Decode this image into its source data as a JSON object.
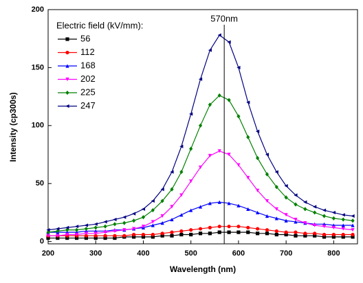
{
  "chart_data": {
    "type": "line",
    "xlabel": "Wavelength (nm)",
    "ylabel": "Intensity (cp300s)",
    "legend_title": "Electric field (kV/mm):",
    "legend": "upper left",
    "annotation": {
      "text": "570nm",
      "x": 570
    },
    "xlim": [
      200,
      850
    ],
    "ylim": [
      -2,
      200
    ],
    "xticks": [
      200,
      300,
      400,
      500,
      600,
      700,
      800
    ],
    "yticks": [
      0,
      50,
      100,
      150,
      200
    ],
    "x": [
      200,
      220,
      240,
      260,
      280,
      300,
      320,
      340,
      360,
      380,
      400,
      420,
      440,
      460,
      480,
      500,
      520,
      540,
      560,
      580,
      600,
      620,
      640,
      660,
      680,
      700,
      720,
      740,
      760,
      780,
      800,
      820,
      840
    ],
    "series": [
      {
        "name": "56",
        "color": "#000000",
        "marker": "square",
        "values": [
          3,
          3,
          3,
          3,
          3,
          3,
          3,
          3,
          4,
          4,
          4,
          4,
          5,
          5,
          6,
          6,
          7,
          7,
          8,
          8,
          8,
          8,
          7,
          7,
          6,
          6,
          5,
          5,
          5,
          4,
          4,
          4,
          4
        ]
      },
      {
        "name": "112",
        "color": "#ff0000",
        "marker": "circle",
        "values": [
          5,
          5,
          5,
          5,
          5,
          5,
          5,
          5,
          5,
          6,
          6,
          6,
          7,
          8,
          9,
          10,
          11,
          12,
          13,
          13,
          13,
          12,
          11,
          10,
          9,
          8,
          8,
          7,
          7,
          6,
          6,
          6,
          6
        ]
      },
      {
        "name": "168",
        "color": "#0000ff",
        "marker": "triangle-up",
        "values": [
          8,
          8,
          8,
          8,
          9,
          9,
          9,
          10,
          10,
          11,
          12,
          14,
          16,
          19,
          23,
          27,
          30,
          33,
          34,
          33,
          31,
          28,
          25,
          22,
          20,
          18,
          17,
          16,
          15,
          15,
          14,
          14,
          14
        ]
      },
      {
        "name": "202",
        "color": "#ff00ff",
        "marker": "triangle-down",
        "values": [
          5,
          5,
          6,
          6,
          7,
          7,
          8,
          9,
          10,
          11,
          13,
          17,
          22,
          30,
          40,
          52,
          64,
          74,
          78,
          75,
          66,
          55,
          44,
          35,
          28,
          23,
          19,
          16,
          14,
          13,
          12,
          11,
          10
        ]
      },
      {
        "name": "225",
        "color": "#008000",
        "marker": "diamond",
        "values": [
          8,
          9,
          10,
          10,
          11,
          12,
          13,
          15,
          16,
          18,
          21,
          27,
          35,
          45,
          60,
          80,
          100,
          118,
          126,
          122,
          108,
          90,
          72,
          58,
          47,
          38,
          32,
          28,
          25,
          22,
          20,
          19,
          18
        ]
      },
      {
        "name": "247",
        "color": "#000080",
        "marker": "triangle-left",
        "values": [
          10,
          11,
          12,
          13,
          14,
          15,
          17,
          19,
          21,
          24,
          28,
          35,
          45,
          60,
          82,
          110,
          140,
          165,
          178,
          172,
          150,
          120,
          95,
          75,
          60,
          48,
          40,
          34,
          30,
          27,
          25,
          23,
          22
        ]
      }
    ]
  }
}
